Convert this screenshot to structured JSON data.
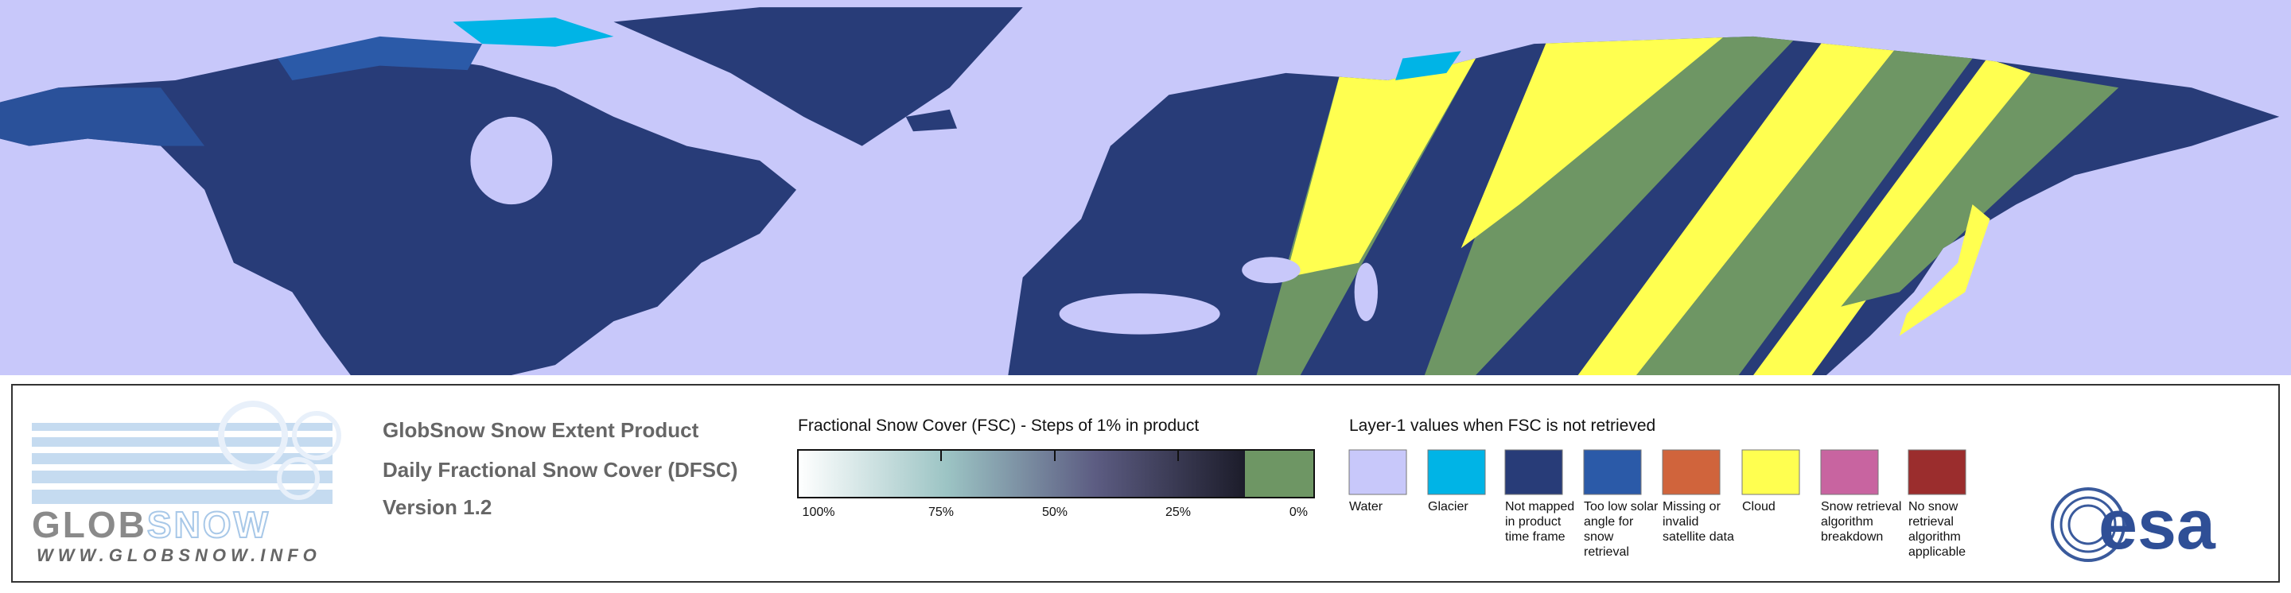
{
  "header": {
    "title": "GlobSnow Snow Extent Product",
    "subtitle": "Daily Fractional Snow Cover (DFSC)",
    "version": "Version 1.2"
  },
  "logo": {
    "part1": "GLOB",
    "part2": "SNOW",
    "url": "WWW.GLOBSNOW.INFO"
  },
  "fsc_legend": {
    "title": "Fractional Snow Cover (FSC) - Steps of 1% in product",
    "labels": [
      "100%",
      "75%",
      "50%",
      "25%",
      "0%"
    ],
    "gradient": [
      "#ffffff",
      "#9cc4c4",
      "#5c5c82",
      "#1c1c2a"
    ],
    "zero_color": "#6e9664"
  },
  "layer1_legend": {
    "title": "Layer-1 values when FSC is not retrieved",
    "classes": [
      {
        "label": "Water",
        "color": "#c8c8fa"
      },
      {
        "label": "Glacier",
        "color": "#00b4e6"
      },
      {
        "label": "Not mapped in product time frame",
        "color": "#283c78"
      },
      {
        "label": "Too low solar angle for snow retrieval",
        "color": "#2b5aa8"
      },
      {
        "label": "Missing or invalid satellite data",
        "color": "#d0643c"
      },
      {
        "label": "Cloud",
        "color": "#ffff50"
      },
      {
        "label": "Snow retrieval algorithm breakdown",
        "color": "#c864a0"
      },
      {
        "label": "No snow retrieval algorithm applicable",
        "color": "#9b2d2d"
      }
    ]
  },
  "esa": "esa"
}
